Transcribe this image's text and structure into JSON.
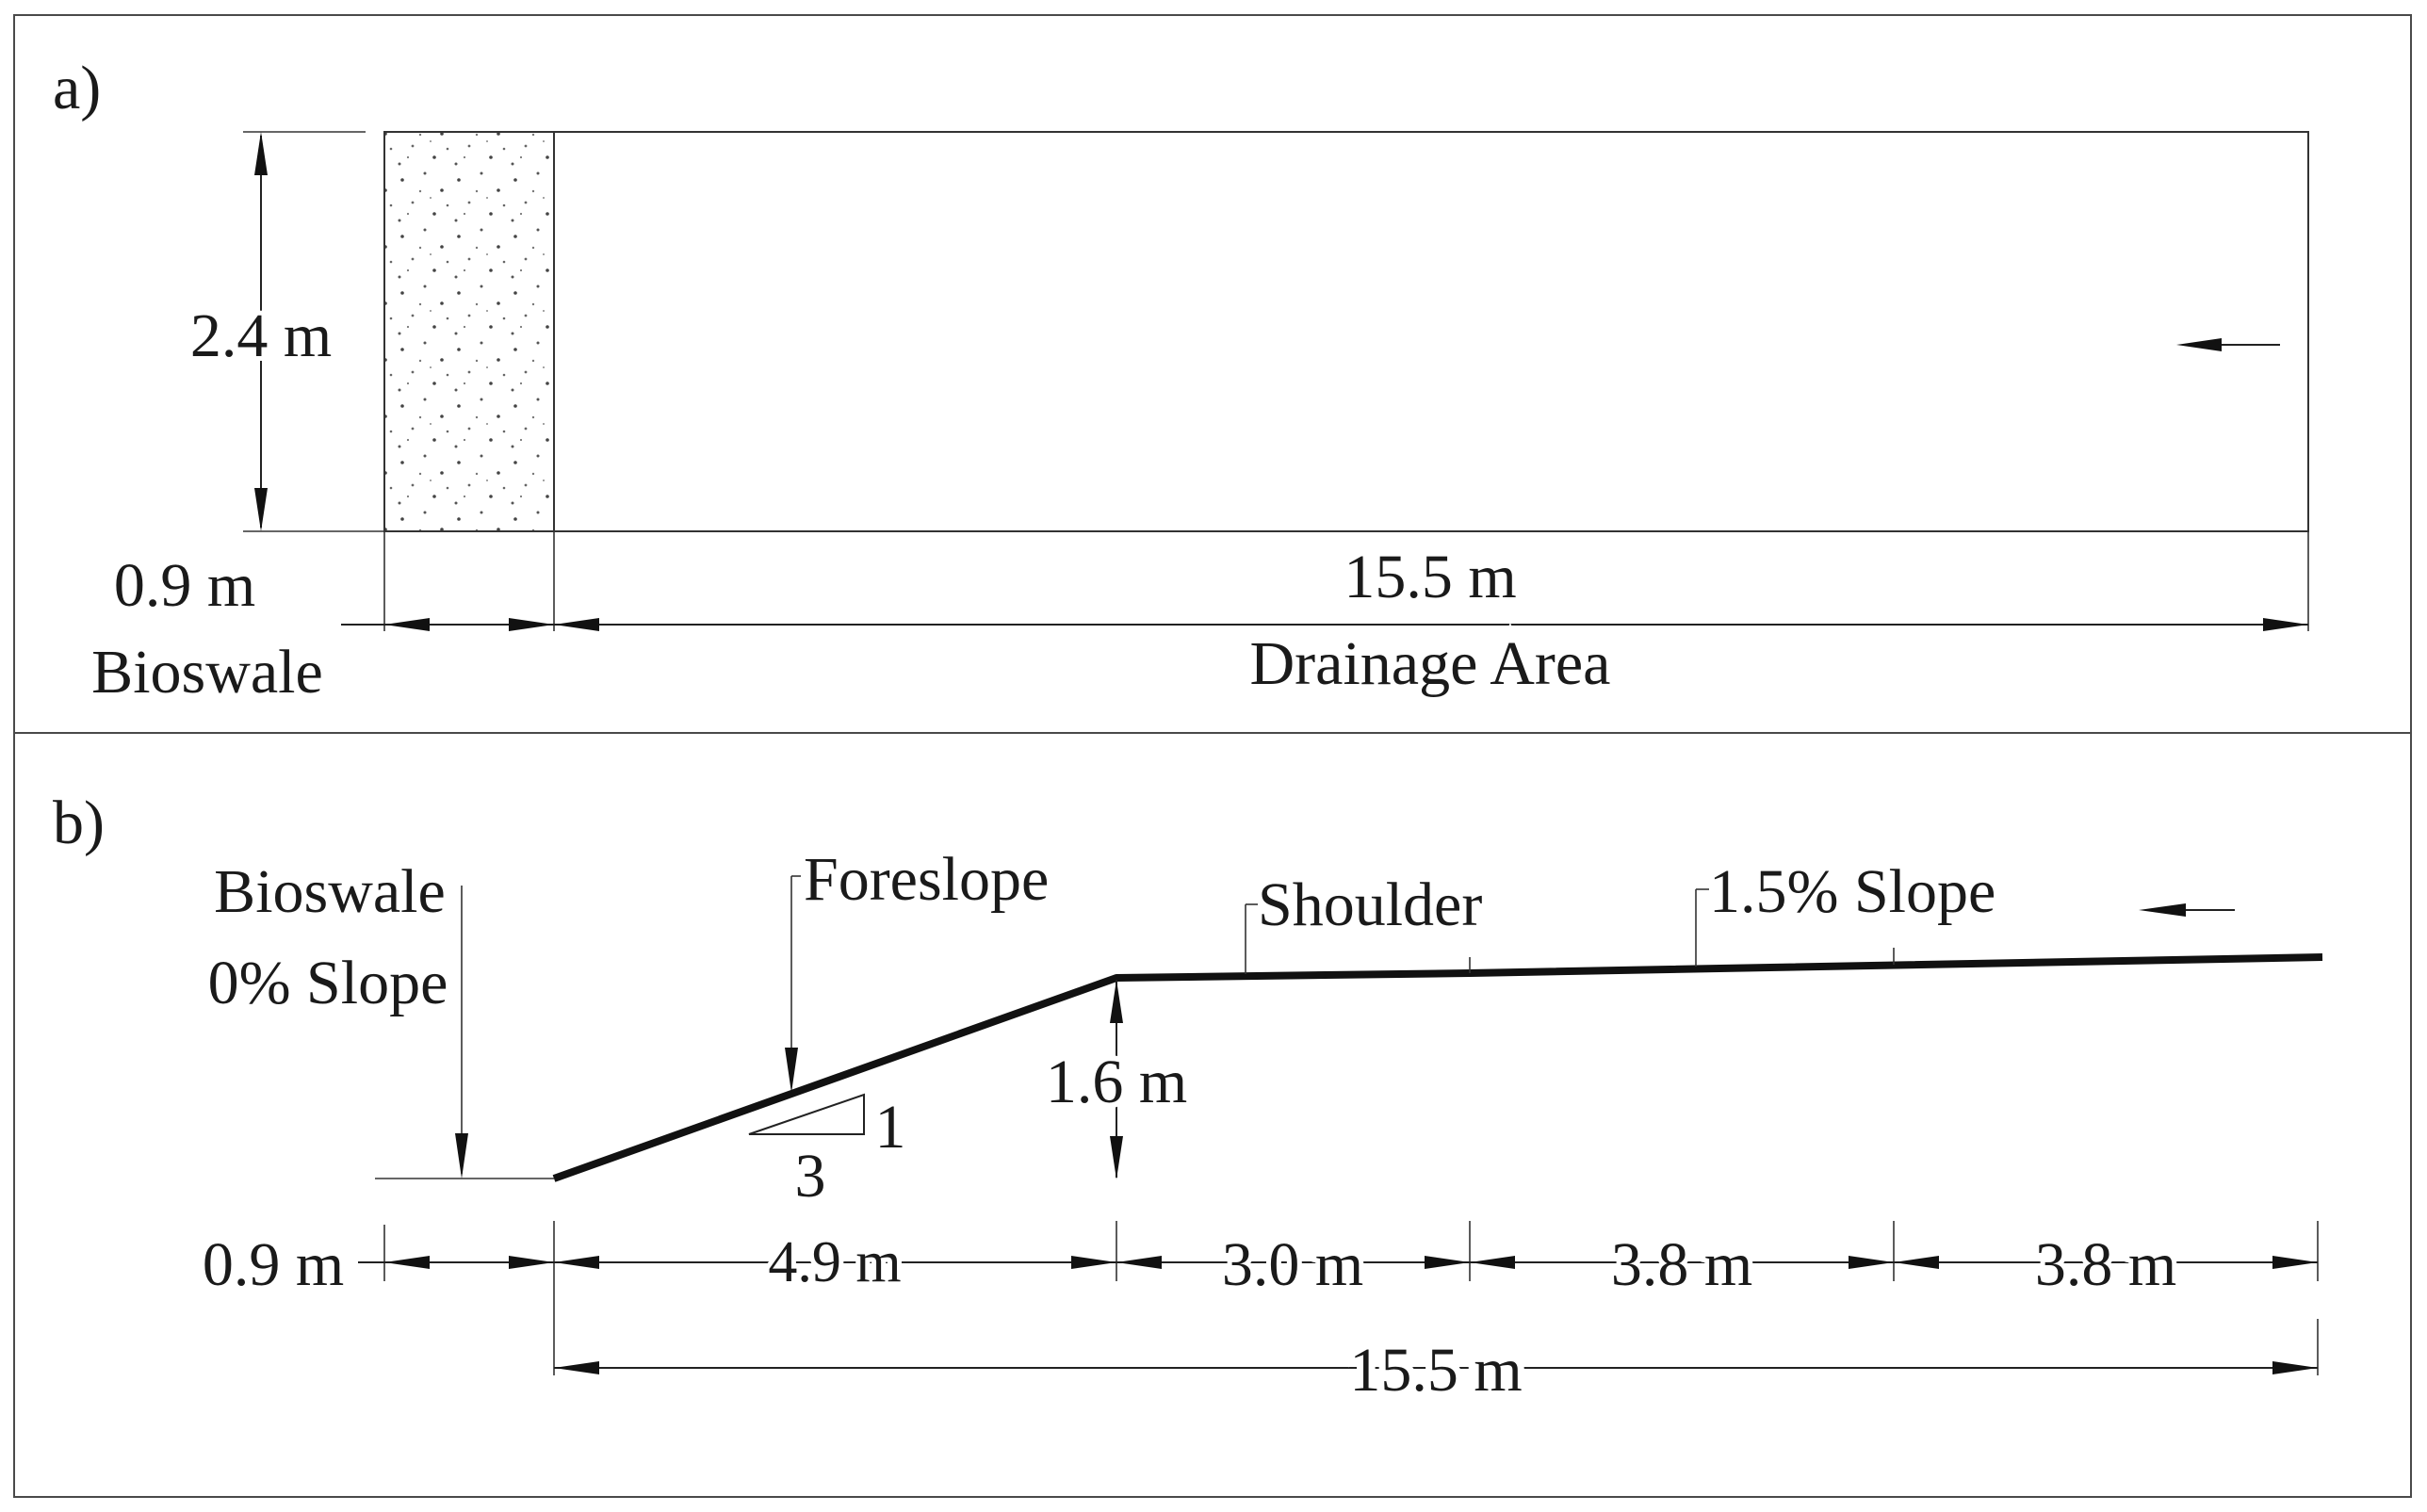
{
  "panel_a": {
    "label": "a)",
    "height_dim": "2.4 m",
    "bioswale_width": "0.9 m",
    "bioswale_name": "Bioswale",
    "drainage_width": "15.5 m",
    "drainage_name": "Drainage Area"
  },
  "panel_b": {
    "label": "b)",
    "bioswale_line1": "Bioswale",
    "bioswale_line2": "0% Slope",
    "foreslope": "Foreslope",
    "shoulder": "Shoulder",
    "slope_pct": "1.5% Slope",
    "rise_dim": "1.6 m",
    "ratio_rise": "1",
    "ratio_run": "3",
    "seg_bioswale": "0.9 m",
    "seg_foreslope": "4.9 m",
    "seg_shoulder": "3.0 m",
    "seg_road1": "3.8 m",
    "seg_road2": "3.8 m",
    "total": "15.5 m"
  }
}
